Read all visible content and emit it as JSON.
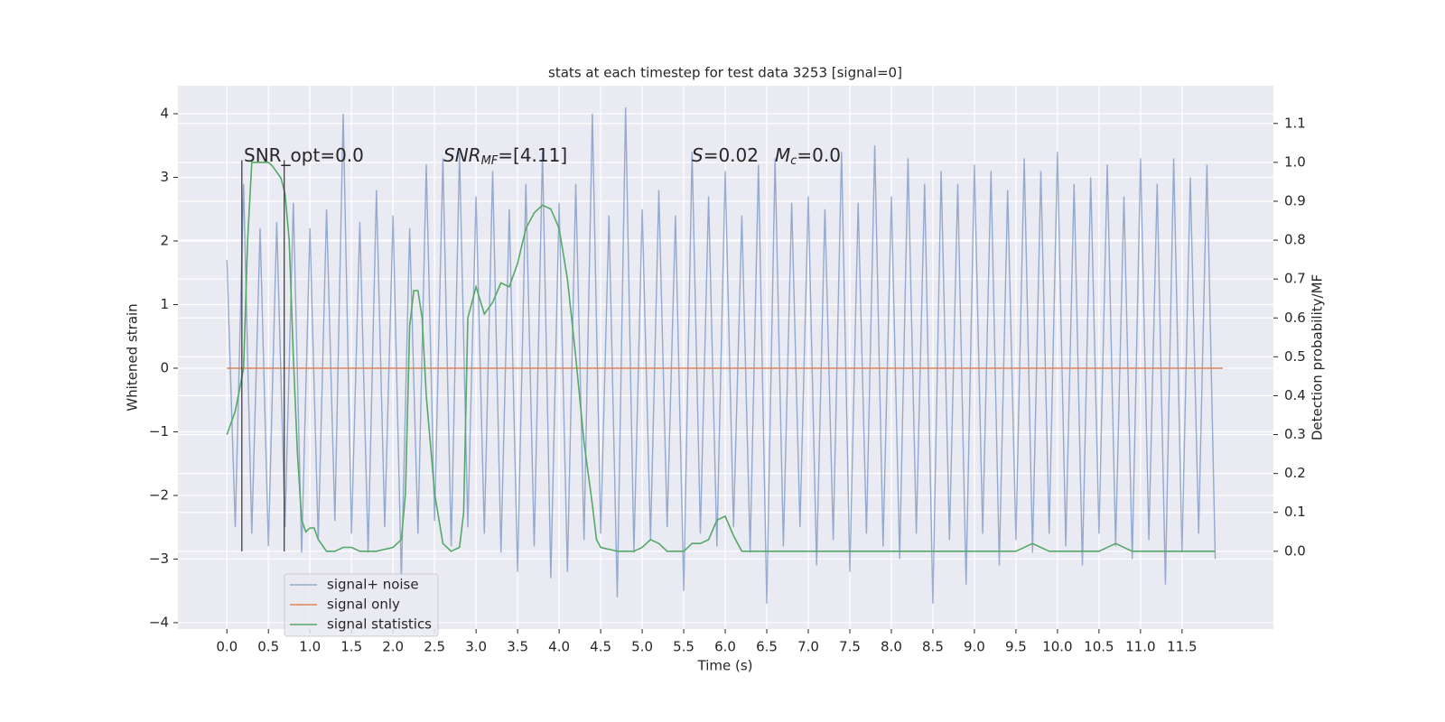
{
  "chart_data": {
    "type": "line",
    "title": "stats at each timestep for test data 3253 [signal=0]",
    "xlabel": "Time (s)",
    "ylabel": "Whitened strain",
    "y2label": "Detection probability/MF",
    "xlim": [
      -0.59,
      12.6
    ],
    "ylim": [
      -4.1,
      4.44
    ],
    "y2lim": [
      -0.2,
      1.197
    ],
    "xticks": [
      {
        "value": 0,
        "label": "0.0"
      },
      0.5,
      {
        "value": 1,
        "label": "1.0"
      },
      1.5,
      {
        "value": 2,
        "label": "2.0"
      },
      2.5,
      {
        "value": 3,
        "label": "3.0"
      },
      3.5,
      {
        "value": 4,
        "label": "4.0"
      },
      4.5,
      {
        "value": 5,
        "label": "5.0"
      },
      5.5,
      {
        "value": 6,
        "label": "6.0"
      },
      6.5,
      {
        "value": 7,
        "label": "7.0"
      },
      7.5,
      {
        "value": 8,
        "label": "8.0"
      },
      8.5,
      {
        "value": 9,
        "label": "9.0"
      },
      9.5,
      {
        "value": 10,
        "label": "10.0"
      },
      10.5,
      {
        "value": 11,
        "label": "11.0"
      },
      11.5
    ],
    "yticks": [
      {
        "value": -4,
        "label": "−4"
      },
      {
        "value": -3,
        "label": "−3"
      },
      {
        "value": -2,
        "label": "−2"
      },
      {
        "value": -1,
        "label": "−1"
      },
      0,
      1,
      2,
      3,
      4
    ],
    "y2ticks": [
      {
        "value": 0,
        "label": "0.0"
      },
      0.1,
      0.2,
      0.3,
      0.4,
      0.5,
      0.6,
      0.7,
      0.8,
      0.9,
      {
        "value": 1,
        "label": "1.0"
      },
      1.1
    ],
    "grid": true,
    "legend": "lower left",
    "series": [
      {
        "name": "signal+ noise",
        "color": "#4c72b0",
        "x": [
          0,
          0.1,
          0.2,
          0.3,
          0.4,
          0.5,
          0.6,
          0.7,
          0.8,
          0.9,
          1,
          1.1,
          1.2,
          1.3,
          1.4,
          1.5,
          1.6,
          1.7,
          1.8,
          1.9,
          2,
          2.1,
          2.2,
          2.3,
          2.4,
          2.5,
          2.6,
          2.7,
          2.8,
          2.9,
          3,
          3.1,
          3.2,
          3.3,
          3.4,
          3.5,
          3.6,
          3.7,
          3.8,
          3.9,
          4,
          4.1,
          4.2,
          4.3,
          4.4,
          4.5,
          4.6,
          4.7,
          4.8,
          4.9,
          5,
          5.1,
          5.2,
          5.3,
          5.4,
          5.5,
          5.6,
          5.7,
          5.8,
          5.9,
          6,
          6.1,
          6.2,
          6.3,
          6.4,
          6.5,
          6.6,
          6.7,
          6.8,
          6.9,
          7,
          7.1,
          7.2,
          7.3,
          7.4,
          7.5,
          7.6,
          7.7,
          7.8,
          7.9,
          8,
          8.1,
          8.2,
          8.3,
          8.4,
          8.5,
          8.6,
          8.7,
          8.8,
          8.9,
          9,
          9.1,
          9.2,
          9.3,
          9.4,
          9.5,
          9.6,
          9.7,
          9.8,
          9.9,
          10,
          10.1,
          10.2,
          10.3,
          10.4,
          10.5,
          10.6,
          10.7,
          10.8,
          10.9,
          11,
          11.1,
          11.2,
          11.3,
          11.4,
          11.5,
          11.6,
          11.7,
          11.8,
          11.9
        ],
        "values": [
          1.7,
          -2.5,
          2.9,
          -2.6,
          2.2,
          -2.8,
          2.3,
          -2.5,
          2.6,
          -2.9,
          2.2,
          -2.7,
          2.5,
          -2.4,
          4.0,
          -2.6,
          2.3,
          -2.9,
          2.8,
          -2.5,
          2.4,
          -3.3,
          2.2,
          -2.6,
          3.2,
          -2.4,
          3.3,
          -2.8,
          3.4,
          -2.5,
          2.7,
          -2.6,
          3.1,
          -2.9,
          2.5,
          -3.2,
          2.9,
          -2.8,
          3.4,
          -3.3,
          2.6,
          -3.2,
          2.9,
          -2.7,
          4.0,
          -2.6,
          2.4,
          -3.6,
          4.1,
          -2.9,
          2.5,
          -2.7,
          2.8,
          -2.5,
          2.4,
          -3.5,
          3.4,
          -2.6,
          2.7,
          -2.8,
          3.1,
          -2.5,
          2.4,
          -2.9,
          3.2,
          -3.7,
          3.3,
          -2.8,
          2.6,
          -2.5,
          2.7,
          -3.1,
          2.5,
          -2.7,
          3.4,
          -3.2,
          2.6,
          -2.6,
          3.5,
          -2.8,
          2.7,
          -3.0,
          3.3,
          -2.6,
          2.9,
          -3.7,
          3.1,
          -2.7,
          2.9,
          -3.4,
          3.2,
          -2.6,
          3.1,
          -3.1,
          2.8,
          -2.7,
          3.3,
          -2.9,
          3.1,
          -2.6,
          3.4,
          -2.8,
          2.9,
          -3.1,
          3.0,
          -2.6,
          3.2,
          -2.8,
          2.7,
          -3.0,
          3.3,
          -2.7,
          2.9,
          -3.4,
          3.3,
          -2.9,
          3.0,
          -2.6,
          3.2,
          -3.0
        ]
      },
      {
        "name": "signal only",
        "color": "#dd8452",
        "x": [
          0,
          11.99
        ],
        "values": [
          0,
          0
        ]
      },
      {
        "name": "signal statistics",
        "color": "#55a868",
        "axis": "y2",
        "x": [
          0,
          0.1,
          0.2,
          0.25,
          0.3,
          0.4,
          0.5,
          0.55,
          0.65,
          0.7,
          0.75,
          0.8,
          0.85,
          0.9,
          0.95,
          1,
          1.05,
          1.1,
          1.2,
          1.3,
          1.4,
          1.5,
          1.6,
          1.8,
          2,
          2.1,
          2.15,
          2.2,
          2.25,
          2.3,
          2.35,
          2.4,
          2.5,
          2.6,
          2.7,
          2.8,
          2.85,
          2.9,
          3,
          3.1,
          3.2,
          3.3,
          3.4,
          3.5,
          3.6,
          3.7,
          3.8,
          3.9,
          4,
          4.1,
          4.2,
          4.3,
          4.4,
          4.45,
          4.5,
          4.7,
          4.9,
          5,
          5.1,
          5.2,
          5.3,
          5.5,
          5.6,
          5.7,
          5.8,
          5.9,
          6,
          6.1,
          6.2,
          6.5,
          7,
          7.5,
          8,
          9,
          9.5,
          9.7,
          9.9,
          10.5,
          10.7,
          10.9,
          11.5,
          11.9
        ],
        "values": [
          0.3,
          0.36,
          0.47,
          0.8,
          1.0,
          1.0,
          1.0,
          0.99,
          0.96,
          0.92,
          0.8,
          0.5,
          0.25,
          0.08,
          0.05,
          0.06,
          0.06,
          0.03,
          0,
          0,
          0.01,
          0.01,
          0,
          0,
          0.01,
          0.03,
          0.15,
          0.58,
          0.67,
          0.67,
          0.6,
          0.4,
          0.15,
          0.02,
          0,
          0.01,
          0.1,
          0.6,
          0.68,
          0.61,
          0.64,
          0.69,
          0.68,
          0.74,
          0.83,
          0.87,
          0.89,
          0.88,
          0.83,
          0.7,
          0.5,
          0.28,
          0.12,
          0.03,
          0.01,
          0,
          0,
          0.01,
          0.03,
          0.02,
          0,
          0,
          0.02,
          0.02,
          0.03,
          0.08,
          0.09,
          0.04,
          0,
          0,
          0,
          0,
          0,
          0,
          0,
          0.02,
          0,
          0,
          0.02,
          0,
          0,
          0
        ]
      }
    ],
    "vlines": {
      "color": "#333333",
      "x": [
        0.18,
        0.69
      ],
      "ymin": [
        -2.88,
        -2.88
      ],
      "ymax": [
        3.27,
        3.27
      ]
    },
    "annotations": [
      {
        "text": "SNR_opt=0.0"
      },
      {
        "base": "SNR",
        "sub": "MF",
        "rest": "=[4.11]"
      },
      {
        "base": "S",
        "rest": "=0.02"
      },
      {
        "base": "M",
        "sub": "c",
        "rest": "=0.0"
      }
    ]
  }
}
